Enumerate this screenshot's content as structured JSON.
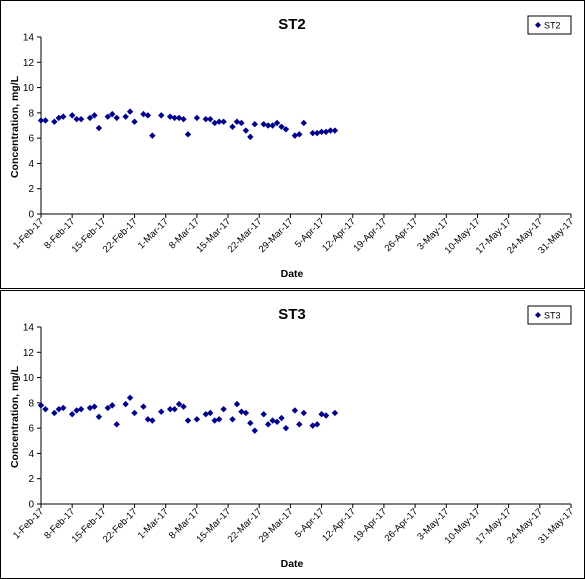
{
  "charts": [
    {
      "title": "ST2",
      "xlabel": "Date",
      "ylabel": "Concentration, mg/L",
      "legend_label": "ST2"
    },
    {
      "title": "ST3",
      "xlabel": "Date",
      "ylabel": "Concentration, mg/L",
      "legend_label": "ST3"
    }
  ],
  "chart_data": [
    {
      "type": "scatter",
      "title": "ST2",
      "xlabel": "Date",
      "ylabel": "Concentration, mg/L",
      "ylim": [
        0,
        14
      ],
      "yticks": [
        0,
        2,
        4,
        6,
        8,
        10,
        12,
        14
      ],
      "xlim": [
        "2017-02-01",
        "2017-05-31"
      ],
      "xticks": [
        "1-Feb-17",
        "8-Feb-17",
        "15-Feb-17",
        "22-Feb-17",
        "1-Mar-17",
        "8-Mar-17",
        "15-Mar-17",
        "22-Mar-17",
        "29-Mar-17",
        "5-Apr-17",
        "12-Apr-17",
        "19-Apr-17",
        "26-Apr-17",
        "3-May-17",
        "10-May-17",
        "17-May-17",
        "24-May-17",
        "31-May-17"
      ],
      "legend_position": "top-right",
      "marker": "diamond",
      "color": "#00008B",
      "series": [
        {
          "name": "ST2",
          "points": [
            {
              "x": "2017-02-01",
              "y": 7.4
            },
            {
              "x": "2017-02-02",
              "y": 7.4
            },
            {
              "x": "2017-02-04",
              "y": 7.3
            },
            {
              "x": "2017-02-05",
              "y": 7.6
            },
            {
              "x": "2017-02-06",
              "y": 7.7
            },
            {
              "x": "2017-02-08",
              "y": 7.8
            },
            {
              "x": "2017-02-09",
              "y": 7.5
            },
            {
              "x": "2017-02-10",
              "y": 7.5
            },
            {
              "x": "2017-02-12",
              "y": 7.6
            },
            {
              "x": "2017-02-13",
              "y": 7.8
            },
            {
              "x": "2017-02-14",
              "y": 6.8
            },
            {
              "x": "2017-02-16",
              "y": 7.7
            },
            {
              "x": "2017-02-17",
              "y": 7.9
            },
            {
              "x": "2017-02-18",
              "y": 7.6
            },
            {
              "x": "2017-02-20",
              "y": 7.7
            },
            {
              "x": "2017-02-21",
              "y": 8.1
            },
            {
              "x": "2017-02-22",
              "y": 7.3
            },
            {
              "x": "2017-02-24",
              "y": 7.9
            },
            {
              "x": "2017-02-25",
              "y": 7.8
            },
            {
              "x": "2017-02-26",
              "y": 6.2
            },
            {
              "x": "2017-02-28",
              "y": 7.8
            },
            {
              "x": "2017-03-02",
              "y": 7.7
            },
            {
              "x": "2017-03-03",
              "y": 7.6
            },
            {
              "x": "2017-03-04",
              "y": 7.6
            },
            {
              "x": "2017-03-05",
              "y": 7.5
            },
            {
              "x": "2017-03-06",
              "y": 6.3
            },
            {
              "x": "2017-03-08",
              "y": 7.6
            },
            {
              "x": "2017-03-10",
              "y": 7.5
            },
            {
              "x": "2017-03-11",
              "y": 7.5
            },
            {
              "x": "2017-03-12",
              "y": 7.2
            },
            {
              "x": "2017-03-13",
              "y": 7.3
            },
            {
              "x": "2017-03-14",
              "y": 7.3
            },
            {
              "x": "2017-03-16",
              "y": 6.9
            },
            {
              "x": "2017-03-17",
              "y": 7.3
            },
            {
              "x": "2017-03-18",
              "y": 7.2
            },
            {
              "x": "2017-03-19",
              "y": 6.6
            },
            {
              "x": "2017-03-20",
              "y": 6.1
            },
            {
              "x": "2017-03-21",
              "y": 7.1
            },
            {
              "x": "2017-03-23",
              "y": 7.1
            },
            {
              "x": "2017-03-24",
              "y": 7.0
            },
            {
              "x": "2017-03-25",
              "y": 7.0
            },
            {
              "x": "2017-03-26",
              "y": 7.2
            },
            {
              "x": "2017-03-27",
              "y": 6.9
            },
            {
              "x": "2017-03-28",
              "y": 6.7
            },
            {
              "x": "2017-03-30",
              "y": 6.2
            },
            {
              "x": "2017-03-31",
              "y": 6.3
            },
            {
              "x": "2017-04-01",
              "y": 7.2
            },
            {
              "x": "2017-04-03",
              "y": 6.4
            },
            {
              "x": "2017-04-04",
              "y": 6.4
            },
            {
              "x": "2017-04-05",
              "y": 6.5
            },
            {
              "x": "2017-04-06",
              "y": 6.5
            },
            {
              "x": "2017-04-07",
              "y": 6.6
            },
            {
              "x": "2017-04-08",
              "y": 6.6
            }
          ]
        }
      ]
    },
    {
      "type": "scatter",
      "title": "ST3",
      "xlabel": "Date",
      "ylabel": "Concentration, mg/L",
      "ylim": [
        0,
        14
      ],
      "yticks": [
        0,
        2,
        4,
        6,
        8,
        10,
        12,
        14
      ],
      "xlim": [
        "2017-02-01",
        "2017-05-31"
      ],
      "xticks": [
        "1-Feb-17",
        "8-Feb-17",
        "15-Feb-17",
        "22-Feb-17",
        "1-Mar-17",
        "8-Mar-17",
        "15-Mar-17",
        "22-Mar-17",
        "29-Mar-17",
        "5-Apr-17",
        "12-Apr-17",
        "19-Apr-17",
        "26-Apr-17",
        "3-May-17",
        "10-May-17",
        "17-May-17",
        "24-May-17",
        "31-May-17"
      ],
      "legend_position": "top-right",
      "marker": "diamond",
      "color": "#00008B",
      "series": [
        {
          "name": "ST3",
          "points": [
            {
              "x": "2017-02-01",
              "y": 7.8
            },
            {
              "x": "2017-02-02",
              "y": 7.5
            },
            {
              "x": "2017-02-04",
              "y": 7.2
            },
            {
              "x": "2017-02-05",
              "y": 7.5
            },
            {
              "x": "2017-02-06",
              "y": 7.6
            },
            {
              "x": "2017-02-08",
              "y": 7.1
            },
            {
              "x": "2017-02-09",
              "y": 7.4
            },
            {
              "x": "2017-02-10",
              "y": 7.5
            },
            {
              "x": "2017-02-12",
              "y": 7.6
            },
            {
              "x": "2017-02-13",
              "y": 7.7
            },
            {
              "x": "2017-02-14",
              "y": 6.9
            },
            {
              "x": "2017-02-16",
              "y": 7.6
            },
            {
              "x": "2017-02-17",
              "y": 7.8
            },
            {
              "x": "2017-02-18",
              "y": 6.3
            },
            {
              "x": "2017-02-20",
              "y": 7.9
            },
            {
              "x": "2017-02-21",
              "y": 8.4
            },
            {
              "x": "2017-02-22",
              "y": 7.2
            },
            {
              "x": "2017-02-24",
              "y": 7.7
            },
            {
              "x": "2017-02-25",
              "y": 6.7
            },
            {
              "x": "2017-02-26",
              "y": 6.6
            },
            {
              "x": "2017-02-28",
              "y": 7.3
            },
            {
              "x": "2017-03-02",
              "y": 7.5
            },
            {
              "x": "2017-03-03",
              "y": 7.5
            },
            {
              "x": "2017-03-04",
              "y": 7.9
            },
            {
              "x": "2017-03-05",
              "y": 7.7
            },
            {
              "x": "2017-03-06",
              "y": 6.6
            },
            {
              "x": "2017-03-08",
              "y": 6.7
            },
            {
              "x": "2017-03-10",
              "y": 7.1
            },
            {
              "x": "2017-03-11",
              "y": 7.2
            },
            {
              "x": "2017-03-12",
              "y": 6.6
            },
            {
              "x": "2017-03-13",
              "y": 6.7
            },
            {
              "x": "2017-03-14",
              "y": 7.5
            },
            {
              "x": "2017-03-16",
              "y": 6.7
            },
            {
              "x": "2017-03-17",
              "y": 7.9
            },
            {
              "x": "2017-03-18",
              "y": 7.3
            },
            {
              "x": "2017-03-19",
              "y": 7.2
            },
            {
              "x": "2017-03-20",
              "y": 6.4
            },
            {
              "x": "2017-03-21",
              "y": 5.8
            },
            {
              "x": "2017-03-23",
              "y": 7.1
            },
            {
              "x": "2017-03-24",
              "y": 6.3
            },
            {
              "x": "2017-03-25",
              "y": 6.6
            },
            {
              "x": "2017-03-26",
              "y": 6.5
            },
            {
              "x": "2017-03-27",
              "y": 6.8
            },
            {
              "x": "2017-03-28",
              "y": 6.0
            },
            {
              "x": "2017-03-30",
              "y": 7.4
            },
            {
              "x": "2017-03-31",
              "y": 6.3
            },
            {
              "x": "2017-04-01",
              "y": 7.2
            },
            {
              "x": "2017-04-03",
              "y": 6.2
            },
            {
              "x": "2017-04-04",
              "y": 6.3
            },
            {
              "x": "2017-04-05",
              "y": 7.1
            },
            {
              "x": "2017-04-06",
              "y": 7.0
            },
            {
              "x": "2017-04-08",
              "y": 7.2
            }
          ]
        }
      ]
    }
  ]
}
